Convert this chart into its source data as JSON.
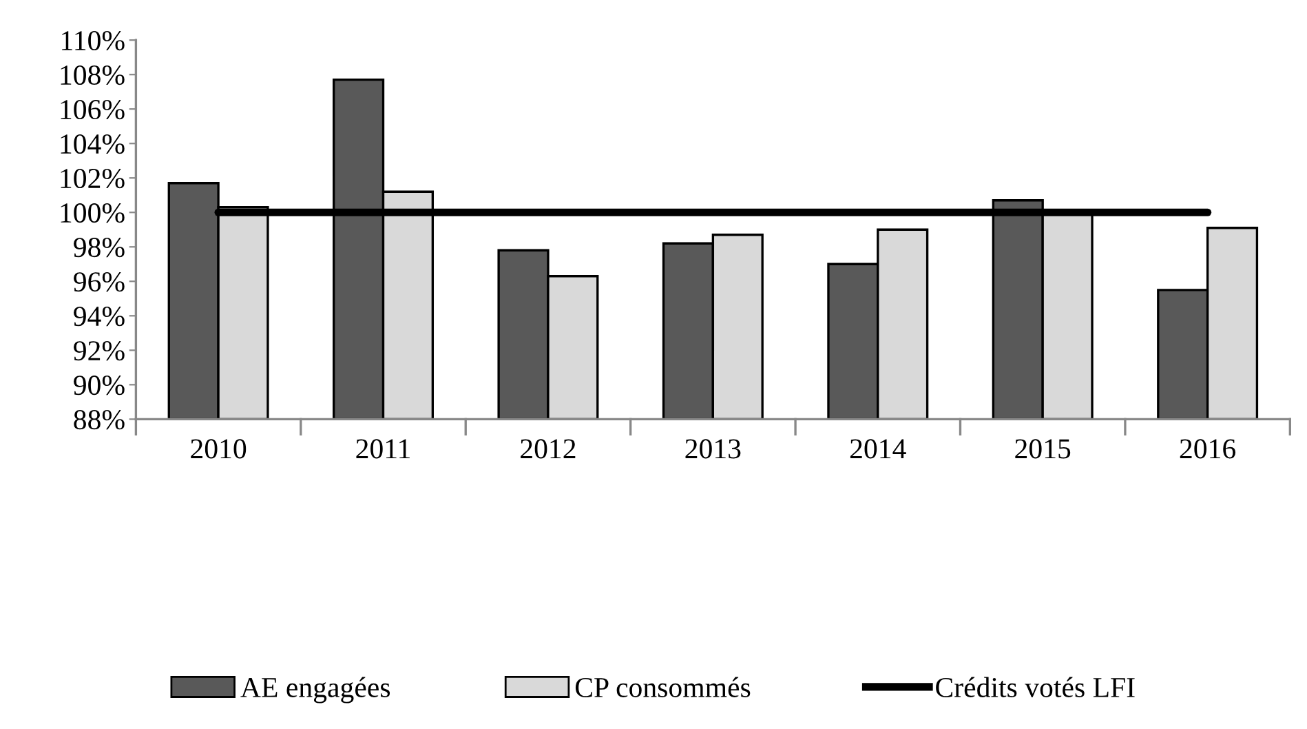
{
  "chart_data": {
    "type": "bar",
    "categories": [
      "2010",
      "2011",
      "2012",
      "2013",
      "2014",
      "2015",
      "2016"
    ],
    "series": [
      {
        "name": "AE engagées",
        "color": "#595959",
        "values": [
          101.7,
          107.7,
          97.8,
          98.2,
          97.0,
          100.7,
          95.5
        ]
      },
      {
        "name": "CP consommés",
        "color": "#d9d9d9",
        "values": [
          100.3,
          101.2,
          96.3,
          98.7,
          99.0,
          100.0,
          99.1
        ]
      },
      {
        "name": "Crédits votés LFI",
        "type": "line",
        "color": "#000000",
        "values": [
          100,
          100,
          100,
          100,
          100,
          100,
          100
        ]
      }
    ],
    "ylim": [
      88,
      110
    ],
    "yticks": [
      {
        "value": 88,
        "label": "88%"
      },
      {
        "value": 90,
        "label": "90%"
      },
      {
        "value": 92,
        "label": "92%"
      },
      {
        "value": 94,
        "label": "94%"
      },
      {
        "value": 96,
        "label": "96%"
      },
      {
        "value": 98,
        "label": "98%"
      },
      {
        "value": 100,
        "label": "100%"
      },
      {
        "value": 102,
        "label": "102%"
      },
      {
        "value": 104,
        "label": "104%"
      },
      {
        "value": 106,
        "label": "106%"
      },
      {
        "value": 108,
        "label": "108%"
      },
      {
        "value": 110,
        "label": "110%"
      }
    ],
    "grid": false,
    "legend": "bottom"
  }
}
